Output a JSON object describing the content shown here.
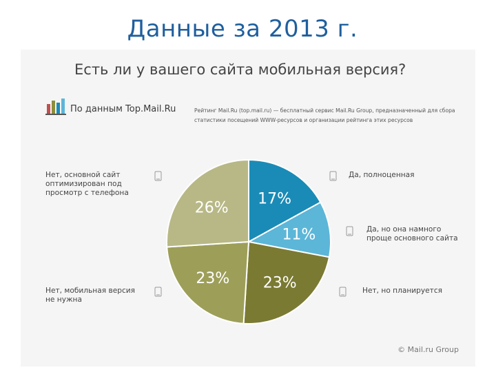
{
  "slide": {
    "title": "Данные за 2013 г."
  },
  "infographic": {
    "question": "Есть ли у вашего сайта мобильная версия?",
    "brand_label": "По данным Top.Mail.Ru",
    "brand_description": "Рейтинг Mail.Ru (top.mail.ru) — бесплатный сервис Mail.Ru Group, предназначенный для сбора статистики посещений WWW-ресурсов и организации рейтинга этих ресурсов",
    "copyright": "© Mail.ru Group"
  },
  "colors": {
    "title": "#1f5f9e",
    "panel": "#f5f5f5",
    "blue_dark": "#1a8bb6",
    "blue_light": "#5cb6d8",
    "olive_dark": "#7a7a33",
    "olive_mid": "#9d9f59",
    "olive_light": "#b8b887"
  },
  "chart_data": {
    "type": "pie",
    "title": "Есть ли у вашего сайта мобильная версия?",
    "start": "12 o'clock, clockwise",
    "slices": [
      {
        "label": "Да, полноценная",
        "value": 17,
        "display": "17%",
        "color": "#1a8bb6"
      },
      {
        "label": "Да, но она намного проще основного сайта",
        "value": 11,
        "display": "11%",
        "color": "#5cb6d8"
      },
      {
        "label": "Нет, но планируется",
        "value": 23,
        "display": "23%",
        "color": "#7a7a33"
      },
      {
        "label": "Нет, мобильная версия не нужна",
        "value": 23,
        "display": "23%",
        "color": "#9d9f59"
      },
      {
        "label": "Нет, основной сайт оптимизирован под просмотр с телефона",
        "value": 26,
        "display": "26%",
        "color": "#b8b887"
      }
    ]
  }
}
